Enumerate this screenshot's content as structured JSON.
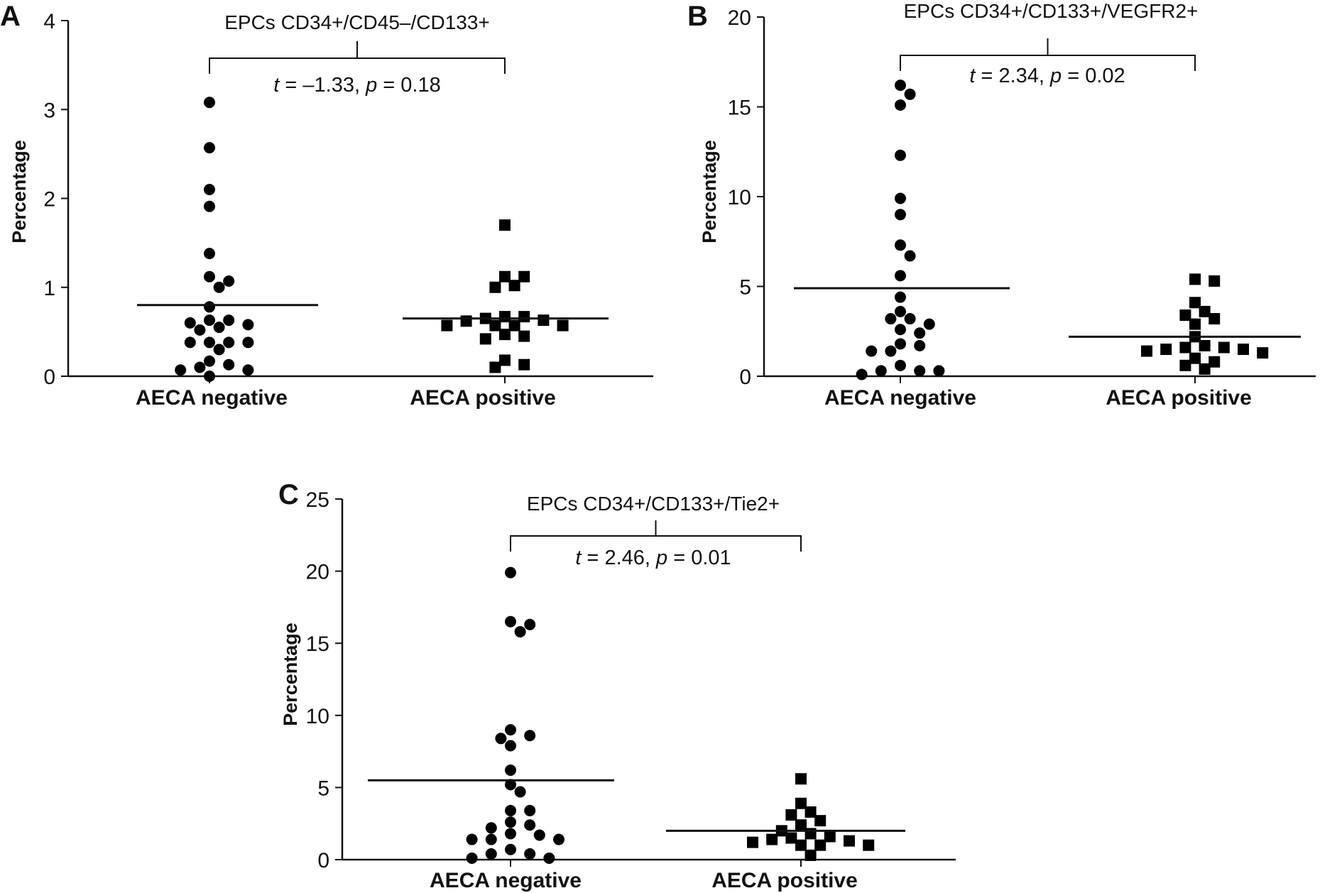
{
  "chart_data": [
    {
      "type": "scatter",
      "panel_label": "A",
      "title": "EPCs CD34+/CD45–/CD133+",
      "stat": {
        "t_label": "t",
        "t": "–1.33",
        "p_label": "p",
        "p": "0.18"
      },
      "ylabel": "Percentage",
      "xlabel": "",
      "ylim": [
        0,
        4
      ],
      "yticks": [
        0,
        1,
        2,
        3,
        4
      ],
      "categories": [
        "AECA negative",
        "AECA positive"
      ],
      "series": [
        {
          "category": "AECA negative",
          "marker": "circle",
          "mean": 0.8,
          "values": [
            3.08,
            2.57,
            2.1,
            1.91,
            1.38,
            1.12,
            1.07,
            1.0,
            0.78,
            0.63,
            0.63,
            0.6,
            0.58,
            0.55,
            0.52,
            0.38,
            0.38,
            0.38,
            0.38,
            0.3,
            0.17,
            0.13,
            0.1,
            0.07,
            0.07,
            0.0
          ]
        },
        {
          "category": "AECA positive",
          "marker": "square",
          "mean": 0.65,
          "values": [
            1.7,
            1.12,
            1.12,
            1.02,
            1.0,
            0.67,
            0.67,
            0.65,
            0.63,
            0.62,
            0.57,
            0.57,
            0.57,
            0.57,
            0.47,
            0.45,
            0.42,
            0.18,
            0.13,
            0.1
          ]
        }
      ],
      "grid": false
    },
    {
      "type": "scatter",
      "panel_label": "B",
      "title": "EPCs CD34+/CD133+/VEGFR2+",
      "stat": {
        "t_label": "t",
        "t": "2.34",
        "p_label": "p",
        "p": "0.02"
      },
      "ylabel": "Percentage",
      "xlabel": "",
      "ylim": [
        0,
        20
      ],
      "yticks": [
        0,
        5,
        10,
        15,
        20
      ],
      "categories": [
        "AECA negative",
        "AECA positive"
      ],
      "series": [
        {
          "category": "AECA negative",
          "marker": "circle",
          "mean": 4.9,
          "values": [
            16.2,
            15.7,
            15.1,
            12.3,
            9.9,
            9.0,
            7.3,
            6.7,
            5.6,
            4.4,
            3.6,
            3.2,
            3.2,
            2.9,
            2.6,
            2.4,
            1.8,
            1.7,
            1.4,
            1.4,
            0.6,
            0.3,
            0.3,
            0.3,
            0.1
          ]
        },
        {
          "category": "AECA positive",
          "marker": "square",
          "mean": 2.2,
          "values": [
            5.4,
            5.3,
            4.1,
            3.6,
            3.4,
            3.2,
            2.9,
            2.2,
            1.7,
            1.6,
            1.6,
            1.5,
            1.5,
            1.4,
            1.3,
            1.0,
            0.8,
            0.6,
            0.4
          ]
        }
      ],
      "grid": false
    },
    {
      "type": "scatter",
      "panel_label": "C",
      "title": "EPCs CD34+/CD133+/Tie2+",
      "stat": {
        "t_label": "t",
        "t": "2.46",
        "p_label": "p",
        "p": "0.01"
      },
      "ylabel": "Percentage",
      "xlabel": "",
      "ylim": [
        0,
        25
      ],
      "yticks": [
        0,
        5,
        10,
        15,
        20,
        25
      ],
      "categories": [
        "AECA negative",
        "AECA positive"
      ],
      "series": [
        {
          "category": "AECA negative",
          "marker": "circle",
          "mean": 5.5,
          "values": [
            19.9,
            16.5,
            16.3,
            15.8,
            9.0,
            8.6,
            8.4,
            7.9,
            6.2,
            5.2,
            4.7,
            3.4,
            3.4,
            2.6,
            2.4,
            2.2,
            1.8,
            1.7,
            1.4,
            1.4,
            1.4,
            0.7,
            0.4,
            0.4,
            0.1,
            0.1
          ]
        },
        {
          "category": "AECA positive",
          "marker": "square",
          "mean": 2.0,
          "values": [
            5.6,
            3.9,
            3.3,
            3.1,
            2.7,
            2.4,
            2.0,
            1.8,
            1.6,
            1.5,
            1.4,
            1.3,
            1.2,
            1.0,
            1.0,
            1.0,
            0.3
          ]
        }
      ],
      "grid": false
    }
  ]
}
